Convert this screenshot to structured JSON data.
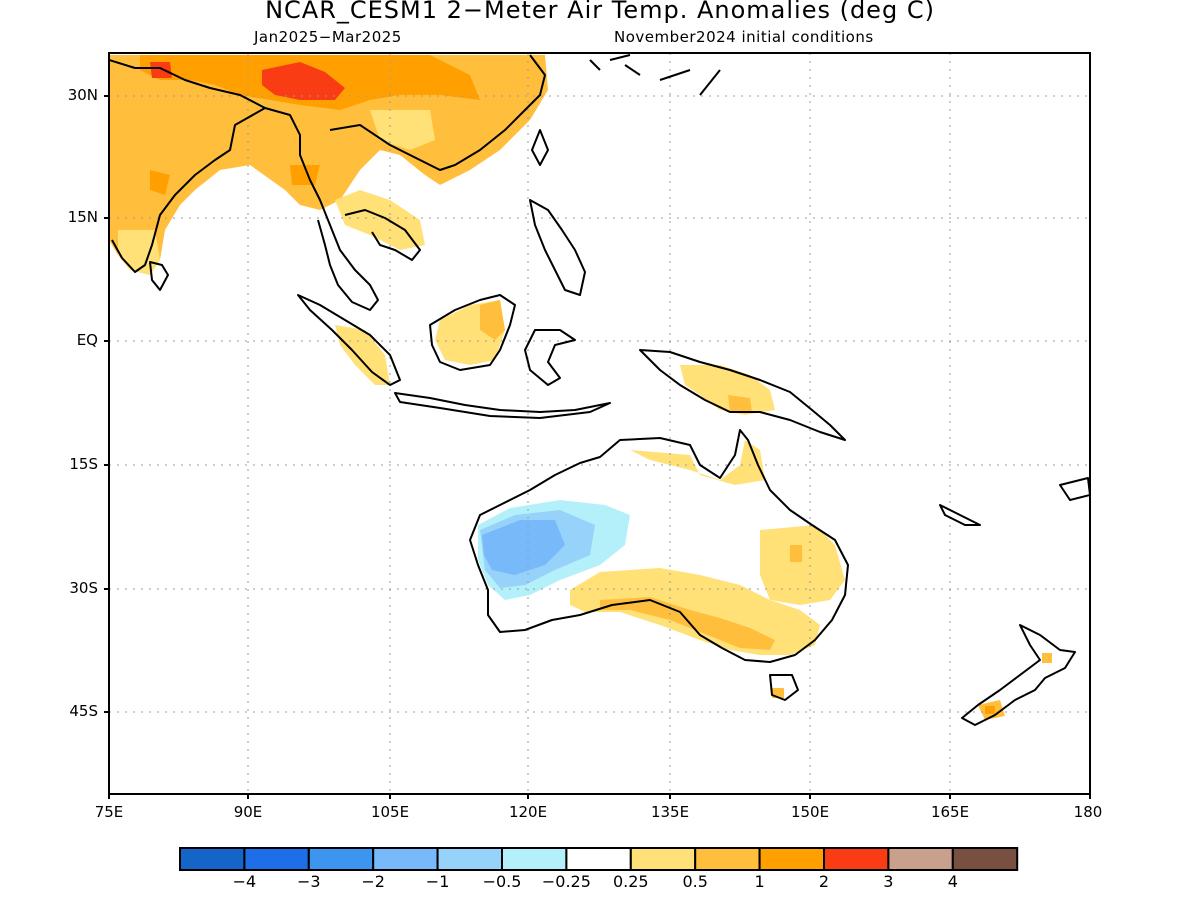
{
  "title": "NCAR_CESM1 2−Meter Air Temp. Anomalies (deg C)",
  "subtitle_period": "Jan2025−Mar2025",
  "subtitle_ic": "November2024 initial conditions",
  "lat_labels": [
    "30N",
    "15N",
    "EQ",
    "15S",
    "30S",
    "45S"
  ],
  "lon_labels": [
    "75E",
    "90E",
    "105E",
    "120E",
    "135E",
    "150E",
    "165E",
    "180"
  ],
  "colorbar": {
    "colors": [
      "#1565c8",
      "#1e6ee8",
      "#3c96f0",
      "#78b9fa",
      "#96d2fa",
      "#b4f0fa",
      "#ffffff",
      "#ffe178",
      "#ffbf3c",
      "#ffa000",
      "#fa3c14",
      "#c8a08c",
      "#785041"
    ],
    "labels": [
      "−4",
      "−3",
      "−2",
      "−1",
      "−0.5",
      "−0.25",
      "0.25",
      "0.5",
      "1",
      "2",
      "3",
      "4"
    ]
  },
  "map": {
    "region": "Indo-Pacific, 75E–180, 52S–35N",
    "shading_colors": {
      "light_yellow": "#ffe178",
      "orange_light": "#ffbf3c",
      "orange": "#ffa000",
      "red": "#fa3c14",
      "light_cyan": "#b4f0fa",
      "light_blue": "#96d2fa",
      "blue": "#78b9fa"
    }
  }
}
